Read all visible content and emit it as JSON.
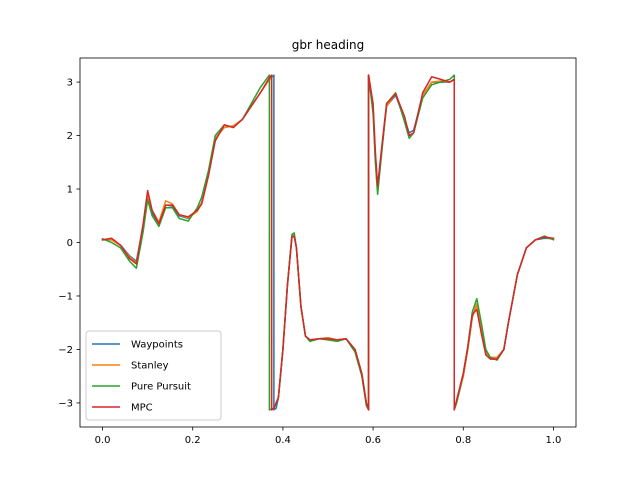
{
  "chart_data": {
    "type": "line",
    "title": "gbr heading",
    "xlabel": "",
    "ylabel": "",
    "xlim": [
      -0.05,
      1.05
    ],
    "ylim": [
      -3.45,
      3.45
    ],
    "xticks": [
      0.0,
      0.2,
      0.4,
      0.6,
      0.8,
      1.0
    ],
    "xtick_labels": [
      "0.0",
      "0.2",
      "0.4",
      "0.6",
      "0.8",
      "1.0"
    ],
    "yticks": [
      -3,
      -2,
      -1,
      0,
      1,
      2,
      3
    ],
    "ytick_labels": [
      "−3",
      "−2",
      "−1",
      "0",
      "1",
      "2",
      "3"
    ],
    "grid": false,
    "legend_position": "lower-left",
    "series": [
      {
        "name": "Waypoints",
        "color": "#1f77b4",
        "x": [
          0.0,
          0.02,
          0.04,
          0.06,
          0.075,
          0.09,
          0.1,
          0.11,
          0.125,
          0.14,
          0.155,
          0.17,
          0.19,
          0.21,
          0.22,
          0.235,
          0.25,
          0.27,
          0.29,
          0.31,
          0.33,
          0.35,
          0.37,
          0.38,
          0.38,
          0.385,
          0.39,
          0.4,
          0.41,
          0.42,
          0.425,
          0.43,
          0.44,
          0.45,
          0.46,
          0.48,
          0.5,
          0.52,
          0.54,
          0.56,
          0.575,
          0.585,
          0.59,
          0.59,
          0.6,
          0.605,
          0.61,
          0.62,
          0.63,
          0.65,
          0.67,
          0.68,
          0.69,
          0.71,
          0.73,
          0.75,
          0.77,
          0.78,
          0.78,
          0.785,
          0.8,
          0.81,
          0.82,
          0.83,
          0.84,
          0.85,
          0.86,
          0.875,
          0.89,
          0.9,
          0.92,
          0.94,
          0.96,
          0.98,
          1.0
        ],
        "y": [
          0.05,
          0.05,
          -0.05,
          -0.25,
          -0.35,
          0.3,
          0.85,
          0.55,
          0.35,
          0.7,
          0.68,
          0.5,
          0.45,
          0.6,
          0.75,
          1.3,
          1.95,
          2.15,
          2.18,
          2.3,
          2.55,
          2.8,
          3.05,
          3.13,
          -3.13,
          -3.1,
          -2.9,
          -2.0,
          -0.8,
          0.1,
          0.12,
          -0.1,
          -1.2,
          -1.75,
          -1.82,
          -1.8,
          -1.78,
          -1.82,
          -1.8,
          -2.0,
          -2.45,
          -3.0,
          -3.12,
          3.13,
          2.5,
          1.6,
          1.05,
          1.8,
          2.55,
          2.75,
          2.3,
          2.05,
          2.1,
          2.75,
          3.0,
          3.0,
          3.0,
          3.05,
          -3.12,
          -3.0,
          -2.5,
          -2.0,
          -1.4,
          -1.15,
          -1.6,
          -2.05,
          -2.15,
          -2.15,
          -2.0,
          -1.5,
          -0.6,
          -0.1,
          0.05,
          0.08,
          0.07
        ]
      },
      {
        "name": "Stanley",
        "color": "#ff7f0e",
        "x": [
          0.0,
          0.02,
          0.04,
          0.06,
          0.075,
          0.09,
          0.1,
          0.11,
          0.125,
          0.14,
          0.155,
          0.17,
          0.19,
          0.21,
          0.22,
          0.235,
          0.25,
          0.27,
          0.29,
          0.31,
          0.33,
          0.35,
          0.37,
          0.375,
          0.375,
          0.38,
          0.39,
          0.4,
          0.41,
          0.42,
          0.425,
          0.43,
          0.44,
          0.45,
          0.46,
          0.48,
          0.5,
          0.52,
          0.54,
          0.56,
          0.575,
          0.585,
          0.59,
          0.59,
          0.6,
          0.605,
          0.61,
          0.62,
          0.63,
          0.65,
          0.67,
          0.68,
          0.69,
          0.71,
          0.73,
          0.75,
          0.77,
          0.78,
          0.78,
          0.785,
          0.8,
          0.81,
          0.82,
          0.83,
          0.84,
          0.85,
          0.86,
          0.875,
          0.89,
          0.9,
          0.92,
          0.94,
          0.96,
          0.98,
          1.0
        ],
        "y": [
          0.06,
          0.05,
          -0.06,
          -0.27,
          -0.38,
          0.25,
          0.9,
          0.6,
          0.38,
          0.78,
          0.72,
          0.52,
          0.46,
          0.58,
          0.75,
          1.3,
          1.95,
          2.15,
          2.18,
          2.3,
          2.55,
          2.8,
          3.05,
          3.12,
          -3.12,
          -3.1,
          -2.9,
          -2.0,
          -0.8,
          0.12,
          0.14,
          -0.1,
          -1.2,
          -1.75,
          -1.83,
          -1.8,
          -1.78,
          -1.82,
          -1.8,
          -2.0,
          -2.45,
          -3.0,
          -3.12,
          3.13,
          2.5,
          1.6,
          1.0,
          1.8,
          2.55,
          2.78,
          2.3,
          2.0,
          2.05,
          2.75,
          3.0,
          3.02,
          3.0,
          3.05,
          -3.12,
          -3.0,
          -2.5,
          -2.0,
          -1.4,
          -1.15,
          -1.6,
          -2.05,
          -2.15,
          -2.15,
          -2.0,
          -1.5,
          -0.6,
          -0.1,
          0.05,
          0.1,
          0.06
        ]
      },
      {
        "name": "Pure Pursuit",
        "color": "#2ca02c",
        "x": [
          0.0,
          0.02,
          0.04,
          0.06,
          0.075,
          0.09,
          0.1,
          0.11,
          0.125,
          0.14,
          0.155,
          0.17,
          0.19,
          0.21,
          0.22,
          0.235,
          0.25,
          0.27,
          0.29,
          0.31,
          0.33,
          0.35,
          0.37,
          0.37,
          0.38,
          0.39,
          0.4,
          0.41,
          0.42,
          0.425,
          0.43,
          0.44,
          0.45,
          0.46,
          0.48,
          0.5,
          0.52,
          0.54,
          0.56,
          0.575,
          0.585,
          0.59,
          0.59,
          0.6,
          0.605,
          0.61,
          0.62,
          0.63,
          0.65,
          0.67,
          0.68,
          0.69,
          0.71,
          0.73,
          0.75,
          0.77,
          0.78,
          0.78,
          0.785,
          0.8,
          0.81,
          0.82,
          0.83,
          0.84,
          0.85,
          0.86,
          0.875,
          0.89,
          0.9,
          0.92,
          0.94,
          0.96,
          0.98,
          1.0
        ],
        "y": [
          0.07,
          0.0,
          -0.1,
          -0.35,
          -0.48,
          0.2,
          0.8,
          0.5,
          0.3,
          0.65,
          0.65,
          0.45,
          0.4,
          0.65,
          0.85,
          1.35,
          2.0,
          2.2,
          2.15,
          2.3,
          2.6,
          2.9,
          3.13,
          -3.13,
          -3.1,
          -2.9,
          -2.0,
          -0.8,
          0.15,
          0.18,
          -0.1,
          -1.2,
          -1.75,
          -1.85,
          -1.8,
          -1.82,
          -1.85,
          -1.8,
          -2.05,
          -2.5,
          -3.05,
          -3.13,
          3.13,
          2.4,
          1.5,
          0.9,
          1.75,
          2.6,
          2.8,
          2.25,
          1.95,
          2.05,
          2.7,
          2.95,
          3.0,
          3.05,
          3.13,
          -3.13,
          -3.0,
          -2.45,
          -1.95,
          -1.3,
          -1.05,
          -1.5,
          -2.0,
          -2.15,
          -2.2,
          -2.0,
          -1.5,
          -0.6,
          -0.1,
          0.05,
          0.12,
          0.05
        ]
      },
      {
        "name": "MPC",
        "color": "#d62728",
        "x": [
          0.0,
          0.02,
          0.04,
          0.06,
          0.075,
          0.09,
          0.1,
          0.11,
          0.125,
          0.14,
          0.155,
          0.17,
          0.19,
          0.21,
          0.22,
          0.235,
          0.25,
          0.27,
          0.29,
          0.31,
          0.33,
          0.35,
          0.37,
          0.375,
          0.375,
          0.38,
          0.39,
          0.4,
          0.41,
          0.42,
          0.425,
          0.43,
          0.44,
          0.45,
          0.46,
          0.48,
          0.5,
          0.52,
          0.54,
          0.56,
          0.575,
          0.585,
          0.59,
          0.59,
          0.6,
          0.605,
          0.61,
          0.62,
          0.63,
          0.65,
          0.67,
          0.68,
          0.69,
          0.71,
          0.73,
          0.75,
          0.77,
          0.78,
          0.78,
          0.785,
          0.8,
          0.81,
          0.82,
          0.83,
          0.84,
          0.85,
          0.86,
          0.875,
          0.89,
          0.9,
          0.92,
          0.94,
          0.96,
          0.98,
          1.0
        ],
        "y": [
          0.05,
          0.08,
          -0.05,
          -0.3,
          -0.4,
          0.35,
          0.97,
          0.6,
          0.35,
          0.7,
          0.7,
          0.52,
          0.48,
          0.6,
          0.72,
          1.25,
          1.9,
          2.2,
          2.15,
          2.3,
          2.55,
          2.8,
          3.08,
          3.13,
          -3.13,
          -3.1,
          -2.9,
          -2.0,
          -0.8,
          0.1,
          0.12,
          -0.1,
          -1.2,
          -1.75,
          -1.82,
          -1.8,
          -1.8,
          -1.82,
          -1.8,
          -2.0,
          -2.45,
          -3.0,
          -3.13,
          3.13,
          2.6,
          1.7,
          1.05,
          1.85,
          2.6,
          2.78,
          2.35,
          2.0,
          2.05,
          2.8,
          3.1,
          3.05,
          3.0,
          3.05,
          -3.13,
          -2.95,
          -2.45,
          -1.95,
          -1.35,
          -1.25,
          -1.7,
          -2.1,
          -2.18,
          -2.18,
          -2.0,
          -1.5,
          -0.6,
          -0.1,
          0.05,
          0.1,
          0.08
        ]
      }
    ]
  }
}
